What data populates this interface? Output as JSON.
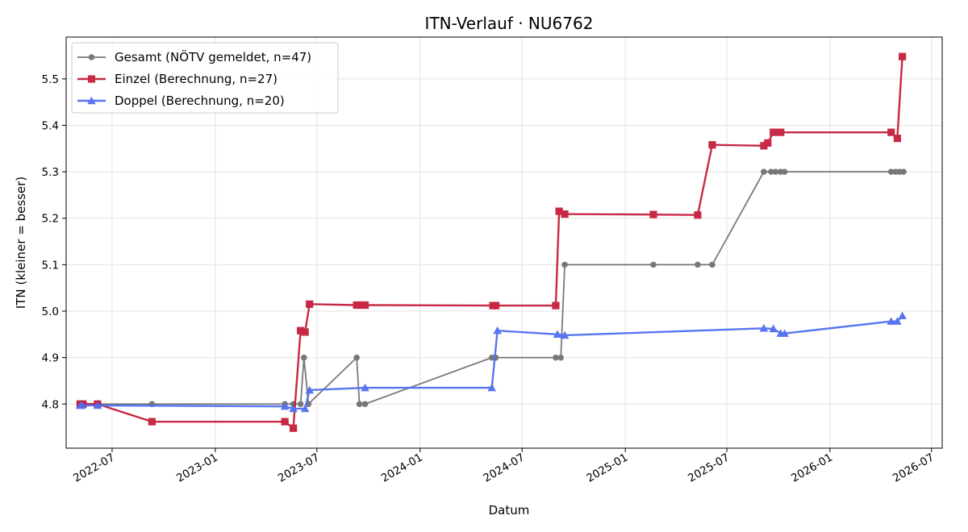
{
  "chart_data": {
    "type": "line",
    "title": "ITN-Verlauf · NU6762",
    "xlabel": "Datum",
    "ylabel": "ITN  (kleiner = besser)",
    "xlim": [
      "2022-04-10",
      "2026-07-20"
    ],
    "ylim": [
      4.705,
      5.59
    ],
    "grid": true,
    "legend_position": "top-left",
    "x_ticks": [
      "2022-07",
      "2023-01",
      "2023-07",
      "2024-01",
      "2024-07",
      "2025-01",
      "2025-07",
      "2026-01",
      "2026-07"
    ],
    "y_ticks": [
      4.8,
      4.9,
      5.0,
      5.1,
      5.2,
      5.3,
      5.4,
      5.5
    ],
    "series": [
      {
        "name": "Gesamt (NÖTV gemeldet, n=47)",
        "color": "#4d4d4d",
        "marker": "circle",
        "points": [
          [
            "2022-05-05",
            4.8
          ],
          [
            "2022-05-08",
            4.8
          ],
          [
            "2022-06-05",
            4.8
          ],
          [
            "2022-09-10",
            4.8
          ],
          [
            "2023-05-05",
            4.8
          ],
          [
            "2023-05-20",
            4.8
          ],
          [
            "2023-06-02",
            4.8
          ],
          [
            "2023-06-08",
            4.9
          ],
          [
            "2023-06-16",
            4.8
          ],
          [
            "2023-09-10",
            4.9
          ],
          [
            "2023-09-15",
            4.8
          ],
          [
            "2023-09-25",
            4.8
          ],
          [
            "2024-05-08",
            4.9
          ],
          [
            "2024-05-15",
            4.9
          ],
          [
            "2024-08-30",
            4.9
          ],
          [
            "2024-09-08",
            4.9
          ],
          [
            "2024-09-15",
            5.1
          ],
          [
            "2025-02-20",
            5.1
          ],
          [
            "2025-05-10",
            5.1
          ],
          [
            "2025-06-05",
            5.1
          ],
          [
            "2025-09-05",
            5.3
          ],
          [
            "2025-09-18",
            5.3
          ],
          [
            "2025-09-26",
            5.3
          ],
          [
            "2025-10-05",
            5.3
          ],
          [
            "2025-10-12",
            5.3
          ],
          [
            "2026-04-20",
            5.3
          ],
          [
            "2026-04-28",
            5.3
          ],
          [
            "2026-05-05",
            5.3
          ],
          [
            "2026-05-12",
            5.3
          ]
        ]
      },
      {
        "name": "Einzel (Berechnung, n=27)",
        "color": "#c41e3a",
        "marker": "square",
        "points": [
          [
            "2022-05-05",
            4.8
          ],
          [
            "2022-05-10",
            4.8
          ],
          [
            "2022-06-05",
            4.8
          ],
          [
            "2022-09-10",
            4.762
          ],
          [
            "2023-05-05",
            4.762
          ],
          [
            "2023-05-20",
            4.748
          ],
          [
            "2023-06-02",
            4.958
          ],
          [
            "2023-06-10",
            4.955
          ],
          [
            "2023-06-18",
            5.015
          ],
          [
            "2023-09-10",
            5.013
          ],
          [
            "2023-09-20",
            5.013
          ],
          [
            "2023-09-25",
            5.013
          ],
          [
            "2024-05-10",
            5.012
          ],
          [
            "2024-05-15",
            5.012
          ],
          [
            "2024-08-30",
            5.012
          ],
          [
            "2024-09-05",
            5.215
          ],
          [
            "2024-09-15",
            5.209
          ],
          [
            "2025-02-20",
            5.208
          ],
          [
            "2025-05-10",
            5.207
          ],
          [
            "2025-06-05",
            5.358
          ],
          [
            "2025-09-05",
            5.356
          ],
          [
            "2025-09-12",
            5.362
          ],
          [
            "2025-09-22",
            5.385
          ],
          [
            "2025-10-05",
            5.385
          ],
          [
            "2026-04-20",
            5.385
          ],
          [
            "2026-05-01",
            5.372
          ],
          [
            "2026-05-10",
            5.548
          ]
        ]
      },
      {
        "name": "Doppel (Berechnung, n=20)",
        "color": "#4f6ef0",
        "marker": "triangle",
        "points": [
          [
            "2022-05-05",
            4.797
          ],
          [
            "2022-05-08",
            4.797
          ],
          [
            "2022-06-05",
            4.797
          ],
          [
            "2023-05-05",
            4.795
          ],
          [
            "2023-05-20",
            4.79
          ],
          [
            "2023-06-10",
            4.79
          ],
          [
            "2023-06-18",
            4.83
          ],
          [
            "2023-09-25",
            4.835
          ],
          [
            "2024-05-08",
            4.835
          ],
          [
            "2024-05-18",
            4.958
          ],
          [
            "2024-09-02",
            4.95
          ],
          [
            "2024-09-15",
            4.948
          ],
          [
            "2025-09-05",
            4.963
          ],
          [
            "2025-09-22",
            4.962
          ],
          [
            "2025-10-05",
            4.952
          ],
          [
            "2025-10-12",
            4.952
          ],
          [
            "2026-04-20",
            4.978
          ],
          [
            "2026-05-01",
            4.978
          ],
          [
            "2026-05-10",
            4.99
          ]
        ]
      }
    ]
  }
}
